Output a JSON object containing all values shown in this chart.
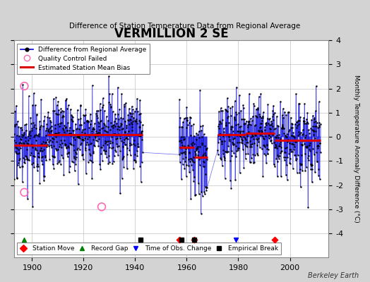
{
  "title": "VERMILLION 2 SE",
  "subtitle": "Difference of Station Temperature Data from Regional Average",
  "ylabel": "Monthly Temperature Anomaly Difference (°C)",
  "xlabel_ticks": [
    1900,
    1920,
    1940,
    1960,
    1980,
    2000
  ],
  "ylim": [
    -5,
    4
  ],
  "yticks": [
    -4,
    -3,
    -2,
    -1,
    0,
    1,
    2,
    3,
    4
  ],
  "xlim": [
    1893,
    2015
  ],
  "fig_bg_color": "#d3d3d3",
  "plot_bg_color": "#ffffff",
  "line_color": "#0000dd",
  "dot_color": "#000000",
  "red_line_color": "#dd0000",
  "qc_fail_color": "#ff69b4",
  "watermark": "Berkeley Earth",
  "grid_color": "#cccccc",
  "segment_biases": [
    {
      "start": 1893,
      "end": 1906,
      "bias": -0.35
    },
    {
      "start": 1906,
      "end": 1943,
      "bias": 0.1
    },
    {
      "start": 1957,
      "end": 1963,
      "bias": -0.45
    },
    {
      "start": 1963,
      "end": 1968,
      "bias": -0.85
    },
    {
      "start": 1972,
      "end": 1983,
      "bias": 0.1
    },
    {
      "start": 1983,
      "end": 1994,
      "bias": 0.15
    },
    {
      "start": 1994,
      "end": 2012,
      "bias": -0.15
    }
  ],
  "gaps": [
    {
      "start": 1943,
      "end": 1957
    },
    {
      "start": 1968,
      "end": 1972
    }
  ],
  "station_moves": [
    1957,
    1963,
    1994
  ],
  "record_gaps": [
    1897
  ],
  "obs_changes": [
    1979
  ],
  "empirical_breaks": [
    1942,
    1958,
    1963
  ],
  "qc_fail_points": [
    [
      1897,
      2.1
    ],
    [
      1897,
      -2.3
    ],
    [
      1927,
      -2.9
    ]
  ],
  "seed": 17
}
